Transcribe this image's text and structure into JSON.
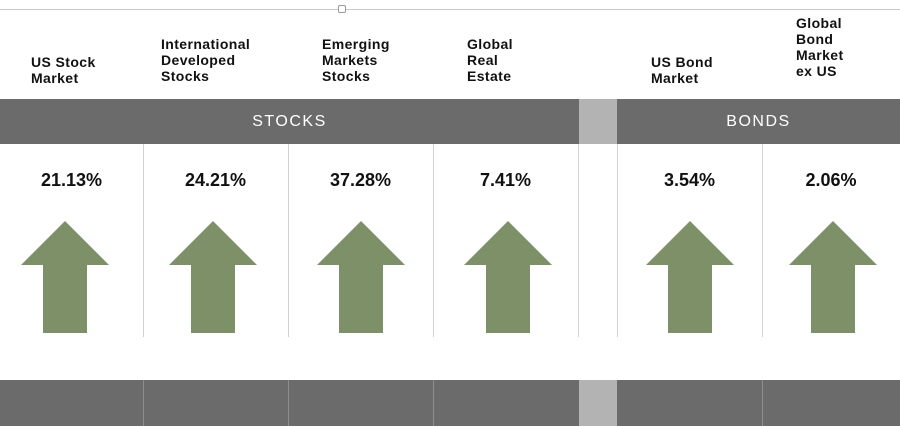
{
  "headers": [
    "US Stock\nMarket",
    "International\nDeveloped\nStocks",
    "Emerging\nMarkets\nStocks",
    "Global\nReal\nEstate",
    "US Bond\nMarket",
    "Global\nBond\nMarket\nex US"
  ],
  "groups": {
    "stocks": "STOCKS",
    "bonds": "BONDS"
  },
  "returns": [
    "21.13%",
    "24.21%",
    "37.28%",
    "7.41%",
    "3.54%",
    "2.06%"
  ],
  "returns_direction": [
    "up",
    "up",
    "up",
    "up",
    "up",
    "up"
  ],
  "colors": {
    "band": "#6b6b6b",
    "gap": "#b3b3b3",
    "arrow": "#7d9068"
  }
}
